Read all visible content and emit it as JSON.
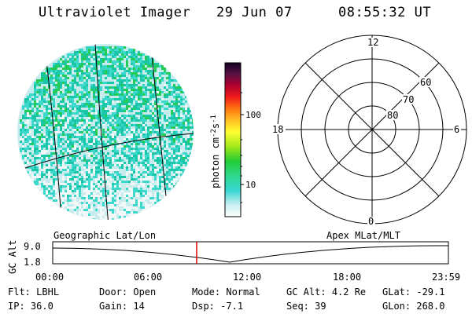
{
  "header": {
    "title": "Ultraviolet Imager",
    "date": "29 Jun 07",
    "time": "08:55:32 UT"
  },
  "colorbar": {
    "label": "photon cm",
    "label_sup_1": "-2",
    "label_mid": "s",
    "label_sup_2": "-1",
    "ticks": [
      "100",
      "10"
    ]
  },
  "polar": {
    "mlt_labels": [
      "12",
      "18",
      "6",
      "0"
    ],
    "lat_labels": [
      "60",
      "70",
      "80"
    ]
  },
  "strip": {
    "y_axis_label": "GC Alt",
    "y_ticks": [
      "9.0",
      "1.8"
    ],
    "left_title": "Geographic Lat/Lon",
    "right_title": "Apex MLat/MLT",
    "x_ticks": [
      "00:00",
      "06:00",
      "12:00",
      "18:00",
      "23:59"
    ]
  },
  "info": {
    "col1": [
      {
        "label": "Flt:",
        "value": "LBHL"
      },
      {
        "label": "IP:",
        "value": "36.0"
      }
    ],
    "col2": [
      {
        "label": "Door:",
        "value": "Open"
      },
      {
        "label": "Gain:",
        "value": "14"
      }
    ],
    "col3": [
      {
        "label": "Mode:",
        "value": "Normal"
      },
      {
        "label": "Dsp:",
        "value": "-7.1"
      }
    ],
    "col4": [
      {
        "label": "GC Alt:",
        "value": "4.2 Re"
      },
      {
        "label": "Seq:",
        "value": "39"
      }
    ],
    "col5": [
      {
        "label": "GLat:",
        "value": "-29.1"
      },
      {
        "label": "GLon:",
        "value": "268.0"
      }
    ]
  },
  "colors": {
    "image_bg": "#c8ecee",
    "image_mid": "#3cd8cc",
    "image_bright": "#19c6a8",
    "image_green": "#22cc55",
    "marker": "#dd0000"
  }
}
